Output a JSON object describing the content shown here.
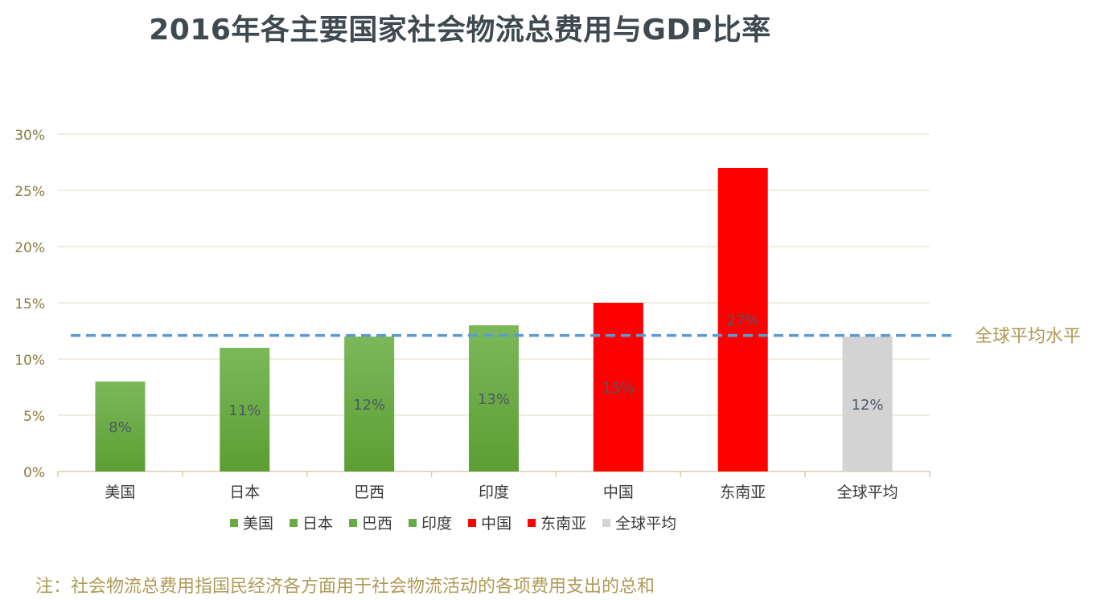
{
  "chart_data": {
    "type": "bar",
    "title": "2016年各主要国家社会物流总费用与GDP比率",
    "categories": [
      "美国",
      "日本",
      "巴西",
      "印度",
      "中国",
      "东南亚",
      "全球平均"
    ],
    "values": [
      8,
      11,
      12,
      13,
      15,
      27,
      12
    ],
    "value_labels": [
      "8%",
      "11%",
      "12%",
      "13%",
      "15%",
      "27%",
      "12%"
    ],
    "bar_colors": [
      "#6aaa43",
      "#6aaa43",
      "#6aaa43",
      "#6aaa43",
      "#ff0000",
      "#ff0000",
      "#d3d3d3"
    ],
    "y_ticks": [
      0,
      5,
      10,
      15,
      20,
      25,
      30
    ],
    "y_tick_labels": [
      "0%",
      "5%",
      "10%",
      "15%",
      "20%",
      "25%",
      "30%"
    ],
    "ylim": [
      0,
      30
    ],
    "xlabel": "",
    "ylabel": "",
    "grid": true,
    "legend_position": "bottom",
    "legend": [
      {
        "name": "美国",
        "color": "#6aaa43"
      },
      {
        "name": "日本",
        "color": "#6aaa43"
      },
      {
        "name": "巴西",
        "color": "#6aaa43"
      },
      {
        "name": "印度",
        "color": "#6aaa43"
      },
      {
        "name": "中国",
        "color": "#ff0000"
      },
      {
        "name": "东南亚",
        "color": "#ff0000"
      },
      {
        "name": "全球平均",
        "color": "#d3d3d3"
      }
    ],
    "reference_line": {
      "value": 12.1,
      "label": "全球平均水平",
      "color": "#5b9bd5",
      "style": "dashed"
    }
  },
  "footnote": "注：社会物流总费用指国民经济各方面用于社会物流活动的各项费用支出的总和"
}
